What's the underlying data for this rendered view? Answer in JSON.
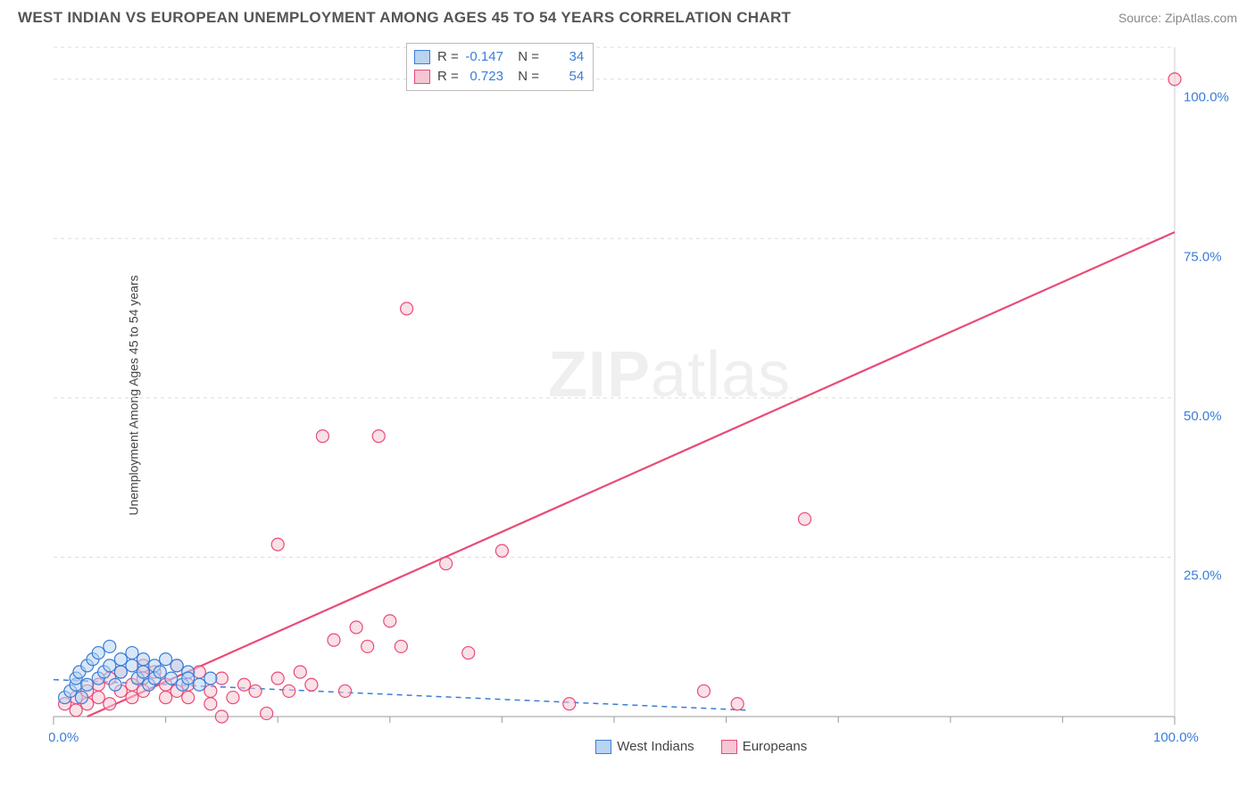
{
  "header": {
    "title": "WEST INDIAN VS EUROPEAN UNEMPLOYMENT AMONG AGES 45 TO 54 YEARS CORRELATION CHART",
    "source": "Source: ZipAtlas.com"
  },
  "chart": {
    "type": "scatter",
    "ylabel": "Unemployment Among Ages 45 to 54 years",
    "xlim": [
      0,
      100
    ],
    "ylim": [
      0,
      105
    ],
    "xtick_major": [
      0,
      100
    ],
    "xtick_minor": [
      10,
      20,
      30,
      40,
      50,
      60,
      70,
      80,
      90
    ],
    "ytick_major": [
      25,
      50,
      75,
      100
    ],
    "tick_label_format": "{v}.0%",
    "xtick_label_color": "#3b7dd8",
    "ytick_label_color": "#3b7dd8",
    "tick_fontsize": 15,
    "label_fontsize": 14,
    "background_color": "#ffffff",
    "grid_color": "#dcdcdc",
    "grid_dash": "4,4",
    "marker_radius": 7,
    "marker_stroke_width": 1.2,
    "series": {
      "west_indians": {
        "label": "West Indians",
        "fill": "#b8d4f0",
        "fill_opacity": 0.55,
        "stroke": "#3b7dd8",
        "points": [
          [
            1,
            3
          ],
          [
            1.5,
            4
          ],
          [
            2,
            5
          ],
          [
            2,
            6
          ],
          [
            2.3,
            7
          ],
          [
            2.5,
            3
          ],
          [
            3,
            8
          ],
          [
            3,
            5
          ],
          [
            3.5,
            9
          ],
          [
            4,
            10
          ],
          [
            4,
            6
          ],
          [
            4.5,
            7
          ],
          [
            5,
            8
          ],
          [
            5,
            11
          ],
          [
            5.5,
            5
          ],
          [
            6,
            9
          ],
          [
            6,
            7
          ],
          [
            7,
            10
          ],
          [
            7,
            8
          ],
          [
            7.5,
            6
          ],
          [
            8,
            9
          ],
          [
            8,
            7
          ],
          [
            8.5,
            5
          ],
          [
            9,
            8
          ],
          [
            9,
            6
          ],
          [
            9.5,
            7
          ],
          [
            10,
            9
          ],
          [
            10.5,
            6
          ],
          [
            11,
            8
          ],
          [
            11.5,
            5
          ],
          [
            12,
            7
          ],
          [
            12,
            6
          ],
          [
            13,
            5
          ],
          [
            14,
            6
          ]
        ],
        "trend": {
          "x1": 0,
          "y1": 5.8,
          "x2": 62,
          "y2": 1,
          "stroke": "#3b7dd8",
          "width": 1.5,
          "dash": "6,5"
        },
        "stats": {
          "R": "-0.147",
          "N": "34"
        }
      },
      "europeans": {
        "label": "Europeans",
        "fill": "#f6c7d3",
        "fill_opacity": 0.55,
        "stroke": "#e94b77",
        "points": [
          [
            1,
            2
          ],
          [
            2,
            3
          ],
          [
            2,
            1
          ],
          [
            3,
            4
          ],
          [
            3,
            2
          ],
          [
            4,
            5
          ],
          [
            4,
            3
          ],
          [
            5,
            6
          ],
          [
            5,
            2
          ],
          [
            6,
            4
          ],
          [
            6,
            7
          ],
          [
            7,
            5
          ],
          [
            7,
            3
          ],
          [
            8,
            6
          ],
          [
            8,
            4
          ],
          [
            9,
            7
          ],
          [
            10,
            5
          ],
          [
            10,
            3
          ],
          [
            11,
            8
          ],
          [
            11,
            4
          ],
          [
            12,
            5
          ],
          [
            12,
            3
          ],
          [
            13,
            7
          ],
          [
            14,
            4
          ],
          [
            14,
            2
          ],
          [
            15,
            0
          ],
          [
            15,
            6
          ],
          [
            16,
            3
          ],
          [
            17,
            5
          ],
          [
            18,
            4
          ],
          [
            19,
            0.5
          ],
          [
            20,
            27
          ],
          [
            20,
            6
          ],
          [
            21,
            4
          ],
          [
            22,
            7
          ],
          [
            23,
            5
          ],
          [
            24,
            44
          ],
          [
            25,
            12
          ],
          [
            26,
            4
          ],
          [
            27,
            14
          ],
          [
            28,
            11
          ],
          [
            29,
            44
          ],
          [
            30,
            15
          ],
          [
            31,
            11
          ],
          [
            31.5,
            64
          ],
          [
            35,
            24
          ],
          [
            37,
            10
          ],
          [
            40,
            26
          ],
          [
            46,
            2
          ],
          [
            58,
            4
          ],
          [
            61,
            2
          ],
          [
            67,
            31
          ],
          [
            100,
            100
          ],
          [
            8,
            8
          ]
        ],
        "trend": {
          "x1": 3,
          "y1": 0,
          "x2": 100,
          "y2": 76,
          "stroke": "#e94b77",
          "width": 2.2,
          "dash": ""
        },
        "stats": {
          "R": "0.723",
          "N": "54"
        }
      }
    },
    "watermark": {
      "text_bold": "ZIP",
      "text_light": "atlas"
    }
  },
  "legend_bottom": {
    "items": [
      {
        "label": "West Indians",
        "fill": "#b8d4f0",
        "stroke": "#3b7dd8"
      },
      {
        "label": "Europeans",
        "fill": "#f6c7d3",
        "stroke": "#e94b77"
      }
    ]
  }
}
